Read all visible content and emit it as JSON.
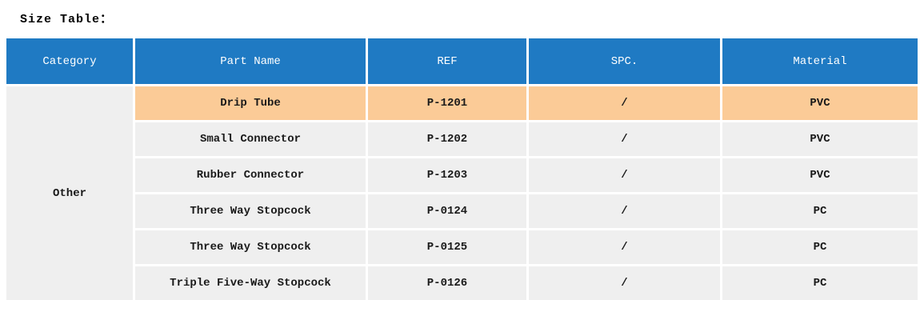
{
  "title": "Size Table：",
  "table": {
    "headers": [
      "Category",
      "Part Name",
      "REF",
      "SPC.",
      "Material"
    ],
    "category": "Other",
    "rows": [
      {
        "part_name": "Drip Tube",
        "ref": "P-1201",
        "spc": "/",
        "material": "PVC",
        "highlighted": true
      },
      {
        "part_name": "Small Connector",
        "ref": "P-1202",
        "spc": "/",
        "material": "PVC",
        "highlighted": false
      },
      {
        "part_name": "Rubber Connector",
        "ref": "P-1203",
        "spc": "/",
        "material": "PVC",
        "highlighted": false
      },
      {
        "part_name": "Three Way Stopcock",
        "ref": "P-0124",
        "spc": "/",
        "material": "PC",
        "highlighted": false
      },
      {
        "part_name": "Three Way Stopcock",
        "ref": "P-0125",
        "spc": "/",
        "material": "PC",
        "highlighted": false
      },
      {
        "part_name": "Triple Five-Way Stopcock",
        "ref": "P-0126",
        "spc": "/",
        "material": "PC",
        "highlighted": false
      }
    ],
    "colors": {
      "header_bg": "#1f7ac3",
      "header_text": "#ffffff",
      "highlight_row_bg": "#fbcb97",
      "row_bg": "#efefef",
      "cell_text": "#1a1a1a"
    }
  }
}
